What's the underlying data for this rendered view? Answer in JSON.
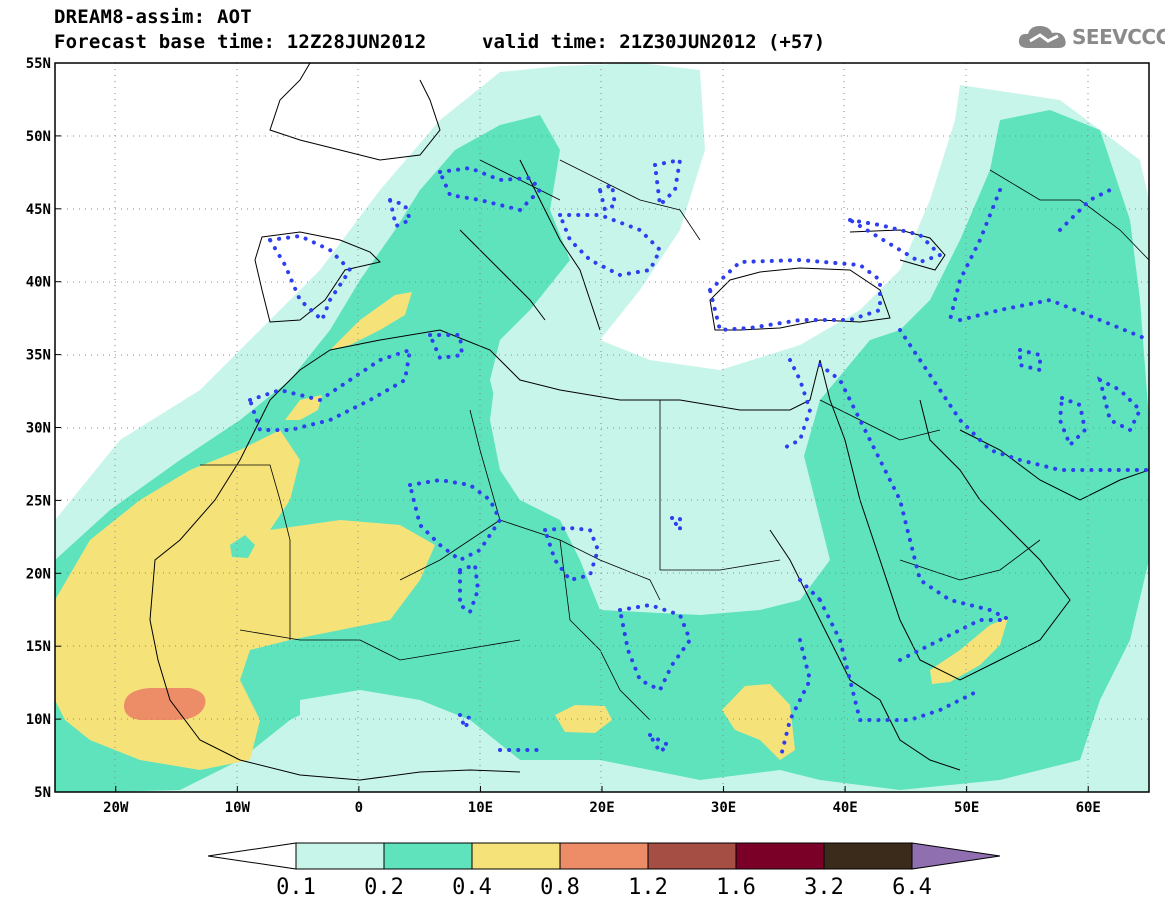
{
  "header": {
    "title": "DREAM8-assim: AOT",
    "base_time": "Forecast base time: 12Z28JUN2012",
    "valid_time": "valid time: 21Z30JUN2012 (+57)",
    "logo_text": "SEEVCCC",
    "logo_icon": "cloud-icon"
  },
  "map": {
    "lon_range": [
      -25,
      65
    ],
    "lat_range": [
      5,
      55
    ],
    "y_ticks": [
      {
        "lat": 55,
        "label": "55N"
      },
      {
        "lat": 50,
        "label": "50N"
      },
      {
        "lat": 45,
        "label": "45N"
      },
      {
        "lat": 40,
        "label": "40N"
      },
      {
        "lat": 35,
        "label": "35N"
      },
      {
        "lat": 30,
        "label": "30N"
      },
      {
        "lat": 25,
        "label": "25N"
      },
      {
        "lat": 20,
        "label": "20N"
      },
      {
        "lat": 15,
        "label": "15N"
      },
      {
        "lat": 10,
        "label": "10N"
      },
      {
        "lat": 5,
        "label": "5N"
      }
    ],
    "x_ticks": [
      {
        "lon": -20,
        "label": "20W"
      },
      {
        "lon": -10,
        "label": "10W"
      },
      {
        "lon": 0,
        "label": "0"
      },
      {
        "lon": 10,
        "label": "10E"
      },
      {
        "lon": 20,
        "label": "20E"
      },
      {
        "lon": 30,
        "label": "30E"
      },
      {
        "lon": 40,
        "label": "40E"
      },
      {
        "lon": 50,
        "label": "50E"
      },
      {
        "lon": 60,
        "label": "60E"
      }
    ],
    "grid": "dotted",
    "colors": {
      "c0_1": "#c8f5ea",
      "c0_2": "#5ee3bd",
      "c0_4": "#f5e37a",
      "c0_8": "#ec8d68",
      "contour": "#2e3ef0"
    }
  },
  "colorbar": {
    "labels": [
      "0.1",
      "0.2",
      "0.4",
      "0.8",
      "1.2",
      "1.6",
      "3.2",
      "6.4"
    ],
    "colors": [
      "#ffffff",
      "#c8f5ea",
      "#5ee3bd",
      "#f5e37a",
      "#ec8d68",
      "#a54e44",
      "#7b0028",
      "#3b2b1a",
      "#8f6fb0"
    ]
  }
}
